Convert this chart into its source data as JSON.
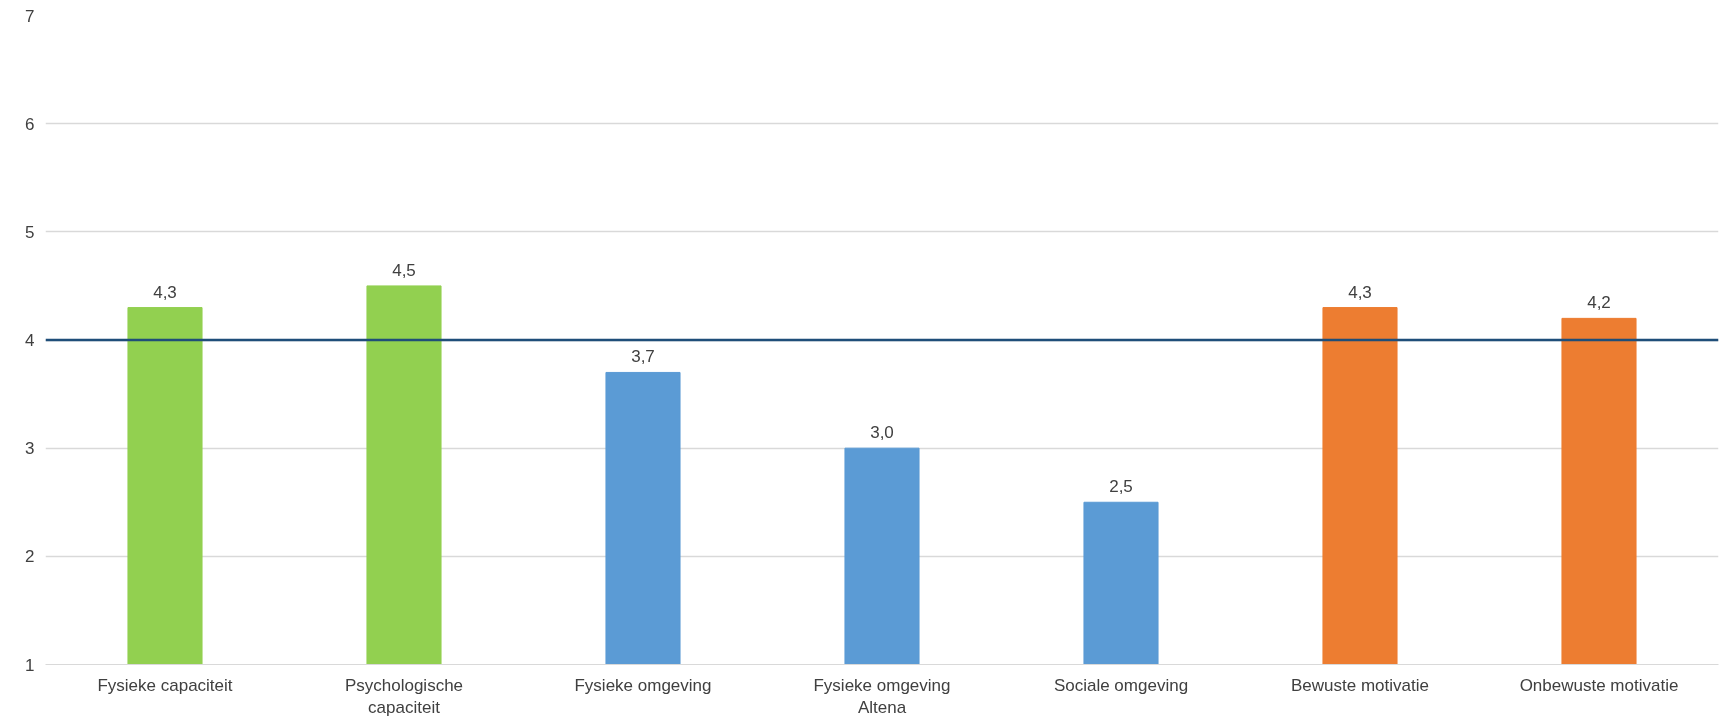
{
  "chart_data": {
    "type": "bar",
    "categories": [
      "Fysieke capaciteit",
      "Psychologische capaciteit",
      "Fysieke omgeving",
      "Fysieke omgeving Altena",
      "Sociale omgeving",
      "Bewuste motivatie",
      "Onbewuste motivatie"
    ],
    "values": [
      4.3,
      4.5,
      3.7,
      3.0,
      2.5,
      4.3,
      4.2
    ],
    "value_labels": [
      "4,3",
      "4,5",
      "3,7",
      "3,0",
      "2,5",
      "4,3",
      "4,2"
    ],
    "colors": [
      "#92d050",
      "#92d050",
      "#5b9bd5",
      "#5b9bd5",
      "#5b9bd5",
      "#ed7d31",
      "#ed7d31"
    ],
    "ylim": [
      1,
      7
    ],
    "yticks": [
      1,
      2,
      3,
      4,
      5,
      6,
      7
    ],
    "grid": "y",
    "ref_lines": [
      {
        "axis": "y",
        "value": 4,
        "label": null,
        "color": "#1f4e79"
      }
    ]
  }
}
